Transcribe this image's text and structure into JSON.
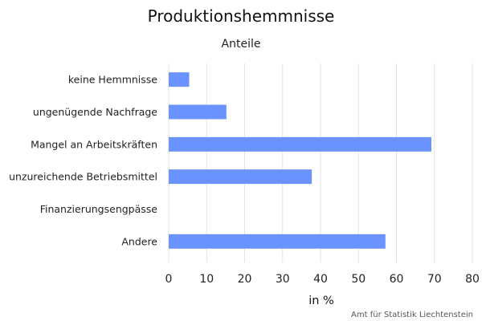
{
  "chart_data": {
    "type": "bar",
    "orientation": "horizontal",
    "title": "Produktionshemmnisse",
    "subtitle": "Anteile",
    "categories": [
      "keine Hemmnisse",
      "ungenügende Nachfrage",
      "Mangel an Arbeitskräften",
      "unzureichende Betriebsmittel",
      "Finanzierungsengpässe",
      "Andere"
    ],
    "values": [
      5.4,
      15.2,
      69.2,
      37.7,
      0,
      57.1
    ],
    "xlabel": "in %",
    "ylabel": "",
    "xlim": [
      0,
      80
    ],
    "xticks": [
      0,
      10,
      20,
      30,
      40,
      50,
      60,
      70,
      80
    ],
    "grid": true,
    "legend": "none",
    "bar_color": "#6b93ff"
  },
  "credits": "Amt für Statistik Liechtenstein"
}
